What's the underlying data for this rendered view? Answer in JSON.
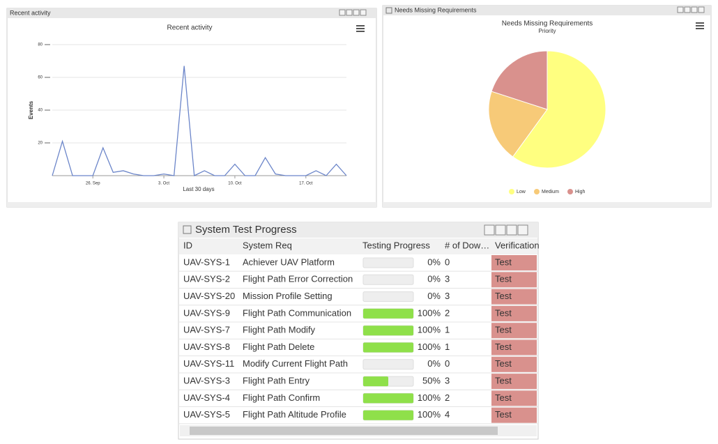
{
  "panels": [
    "Recent activity",
    "Needs Missing Requirements",
    "System Test Progress"
  ],
  "chart_data": [
    {
      "type": "line",
      "title": "Recent activity",
      "x_label": "Last 30 days",
      "y_label": "Events",
      "categories": [
        null,
        null,
        null,
        null,
        "26. Sep",
        null,
        null,
        null,
        null,
        null,
        null,
        "3. Oct",
        null,
        null,
        null,
        null,
        null,
        null,
        "10. Oct",
        null,
        null,
        null,
        null,
        null,
        null,
        "17. Oct",
        null,
        null,
        null,
        null
      ],
      "values": [
        0,
        21,
        0,
        0,
        0,
        17,
        2,
        3,
        1,
        0,
        0,
        1,
        0,
        67,
        0,
        3,
        0,
        0,
        7,
        0,
        0,
        11,
        1,
        0,
        0,
        0,
        3,
        0,
        7,
        0
      ],
      "color": "#6b85c9",
      "ylim": [
        0,
        80
      ],
      "yticks": [
        20,
        40,
        60,
        80
      ],
      "grid": true
    },
    {
      "type": "pie",
      "title": "Needs Missing Requirements",
      "subtitle": "Priority",
      "categories": [
        "Low",
        "Medium",
        "High"
      ],
      "values": [
        60,
        20,
        20
      ],
      "colors": [
        "#ffff80",
        "#f7ca78",
        "#d9918d"
      ],
      "legend": "bottom"
    }
  ],
  "table": {
    "columns": [
      "ID",
      "System Req",
      "Testing Progress",
      "# of Dow…",
      "Verification"
    ],
    "rows": [
      {
        "id": "UAV-SYS-1",
        "req": "Achiever UAV Platform",
        "progress": 0,
        "progress_label": "0%",
        "downstream": 0,
        "verification": "Test"
      },
      {
        "id": "UAV-SYS-2",
        "req": "Flight Path Error Correction",
        "progress": 0,
        "progress_label": "0%",
        "downstream": 3,
        "verification": "Test"
      },
      {
        "id": "UAV-SYS-20",
        "req": "Mission Profile Setting",
        "progress": 0,
        "progress_label": "0%",
        "downstream": 3,
        "verification": "Test"
      },
      {
        "id": "UAV-SYS-9",
        "req": "Flight Path Communication",
        "progress": 100,
        "progress_label": "100%",
        "downstream": 2,
        "verification": "Test"
      },
      {
        "id": "UAV-SYS-7",
        "req": "Flight Path Modify",
        "progress": 100,
        "progress_label": "100%",
        "downstream": 1,
        "verification": "Test"
      },
      {
        "id": "UAV-SYS-8",
        "req": "Flight Path Delete",
        "progress": 100,
        "progress_label": "100%",
        "downstream": 1,
        "verification": "Test"
      },
      {
        "id": "UAV-SYS-11",
        "req": "Modify Current Flight Path",
        "progress": 0,
        "progress_label": "0%",
        "downstream": 0,
        "verification": "Test"
      },
      {
        "id": "UAV-SYS-3",
        "req": "Flight Path Entry",
        "progress": 50,
        "progress_label": "50%",
        "downstream": 3,
        "verification": "Test"
      },
      {
        "id": "UAV-SYS-4",
        "req": "Flight Path Confirm",
        "progress": 100,
        "progress_label": "100%",
        "downstream": 2,
        "verification": "Test"
      },
      {
        "id": "UAV-SYS-5",
        "req": "Flight Path Altitude Profile",
        "progress": 100,
        "progress_label": "100%",
        "downstream": 4,
        "verification": "Test"
      }
    ]
  }
}
